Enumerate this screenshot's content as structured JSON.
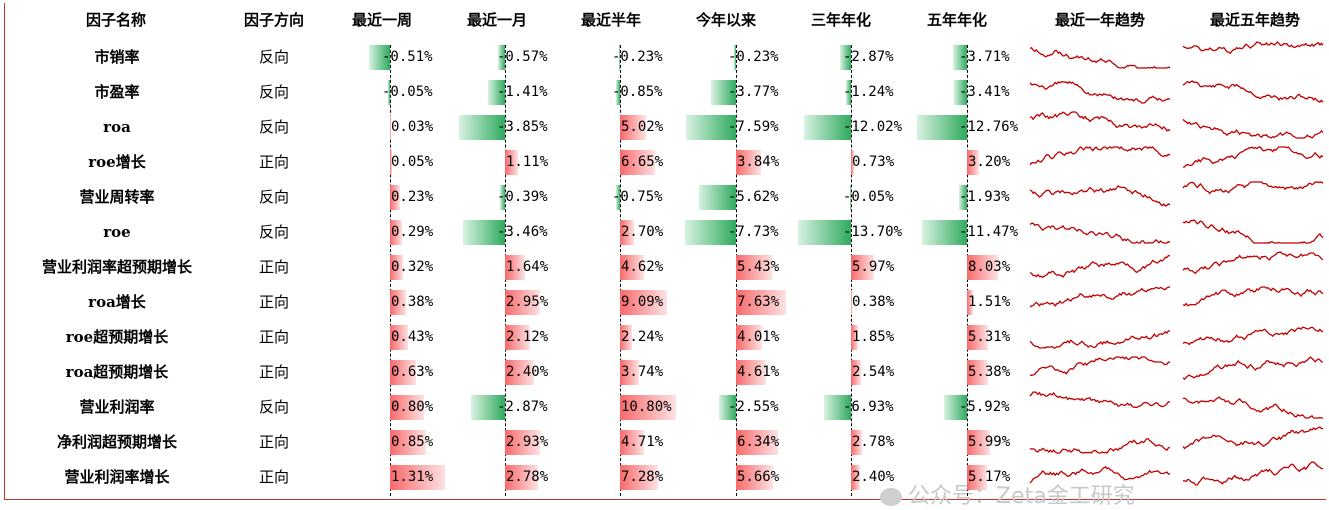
{
  "chart_data": {
    "type": "table",
    "columns": [
      "因子名称",
      "因子方向",
      "最近一周",
      "最近一月",
      "最近半年",
      "今年以来",
      "三年年化",
      "五年年化",
      "最近一年趋势",
      "最近五年趋势"
    ],
    "rows": [
      {
        "name": "市销率",
        "direction": "反向",
        "values": [
          -0.51,
          -0.57,
          -0.23,
          -0.23,
          -2.87,
          -3.71
        ],
        "labels": [
          "-0.51%",
          "-0.57%",
          "-0.23%",
          "-0.23%",
          "-2.87%",
          "-3.71%"
        ]
      },
      {
        "name": "市盈率",
        "direction": "反向",
        "values": [
          -0.05,
          -1.41,
          -0.85,
          -3.77,
          -1.24,
          -3.41
        ],
        "labels": [
          "-0.05%",
          "-1.41%",
          "-0.85%",
          "-3.77%",
          "-1.24%",
          "-3.41%"
        ]
      },
      {
        "name": "roa",
        "direction": "反向",
        "values": [
          0.03,
          -3.85,
          5.02,
          -7.59,
          -12.02,
          -12.76
        ],
        "labels": [
          "0.03%",
          "-3.85%",
          "5.02%",
          "-7.59%",
          "-12.02%",
          "-12.76%"
        ]
      },
      {
        "name": "roe增长",
        "direction": "正向",
        "values": [
          0.05,
          1.11,
          6.65,
          3.84,
          0.73,
          3.2
        ],
        "labels": [
          "0.05%",
          "1.11%",
          "6.65%",
          "3.84%",
          "0.73%",
          "3.20%"
        ]
      },
      {
        "name": "营业周转率",
        "direction": "反向",
        "values": [
          0.23,
          -0.39,
          -0.75,
          -5.62,
          -0.05,
          -1.93
        ],
        "labels": [
          "0.23%",
          "-0.39%",
          "-0.75%",
          "-5.62%",
          "-0.05%",
          "-1.93%"
        ]
      },
      {
        "name": "roe",
        "direction": "反向",
        "values": [
          0.29,
          -3.46,
          2.7,
          -7.73,
          -13.7,
          -11.47
        ],
        "labels": [
          "0.29%",
          "-3.46%",
          "2.70%",
          "-7.73%",
          "-13.70%",
          "-11.47%"
        ]
      },
      {
        "name": "营业利润率超预期增长",
        "direction": "正向",
        "values": [
          0.32,
          1.64,
          4.62,
          5.43,
          5.97,
          8.03
        ],
        "labels": [
          "0.32%",
          "1.64%",
          "4.62%",
          "5.43%",
          "5.97%",
          "8.03%"
        ]
      },
      {
        "name": "roa增长",
        "direction": "正向",
        "values": [
          0.38,
          2.95,
          9.09,
          7.63,
          0.38,
          1.51
        ],
        "labels": [
          "0.38%",
          "2.95%",
          "9.09%",
          "7.63%",
          "0.38%",
          "1.51%"
        ]
      },
      {
        "name": "roe超预期增长",
        "direction": "正向",
        "values": [
          0.43,
          2.12,
          2.24,
          4.01,
          1.85,
          5.31
        ],
        "labels": [
          "0.43%",
          "2.12%",
          "2.24%",
          "4.01%",
          "1.85%",
          "5.31%"
        ]
      },
      {
        "name": "roa超预期增长",
        "direction": "正向",
        "values": [
          0.63,
          2.4,
          3.74,
          4.61,
          2.54,
          5.38
        ],
        "labels": [
          "0.63%",
          "2.40%",
          "3.74%",
          "4.61%",
          "2.54%",
          "5.38%"
        ]
      },
      {
        "name": "营业利润率",
        "direction": "反向",
        "values": [
          0.8,
          -2.87,
          10.8,
          -2.55,
          -6.93,
          -5.92
        ],
        "labels": [
          "0.80%",
          "-2.87%",
          "10.80%",
          "-2.55%",
          "-6.93%",
          "-5.92%"
        ]
      },
      {
        "name": "净利润超预期增长",
        "direction": "正向",
        "values": [
          0.85,
          2.93,
          4.71,
          6.34,
          2.78,
          5.99
        ],
        "labels": [
          "0.85%",
          "2.93%",
          "4.71%",
          "6.34%",
          "2.78%",
          "5.99%"
        ]
      },
      {
        "name": "营业利润率增长",
        "direction": "正向",
        "values": [
          1.31,
          2.78,
          7.28,
          5.66,
          2.4,
          5.17
        ],
        "labels": [
          "1.31%",
          "2.78%",
          "7.28%",
          "5.66%",
          "2.40%",
          "5.17%"
        ]
      }
    ],
    "trend_direction": [
      "down",
      "down",
      "down",
      "up",
      "down",
      "down",
      "up",
      "up",
      "up",
      "up",
      "down",
      "up",
      "up"
    ],
    "colors": {
      "positive": "#f8696b",
      "negative": "#2eaa5e",
      "sparkline": "#c00000",
      "frame": "#c0392b"
    }
  },
  "watermark": "公众号：Zeta金工研究"
}
